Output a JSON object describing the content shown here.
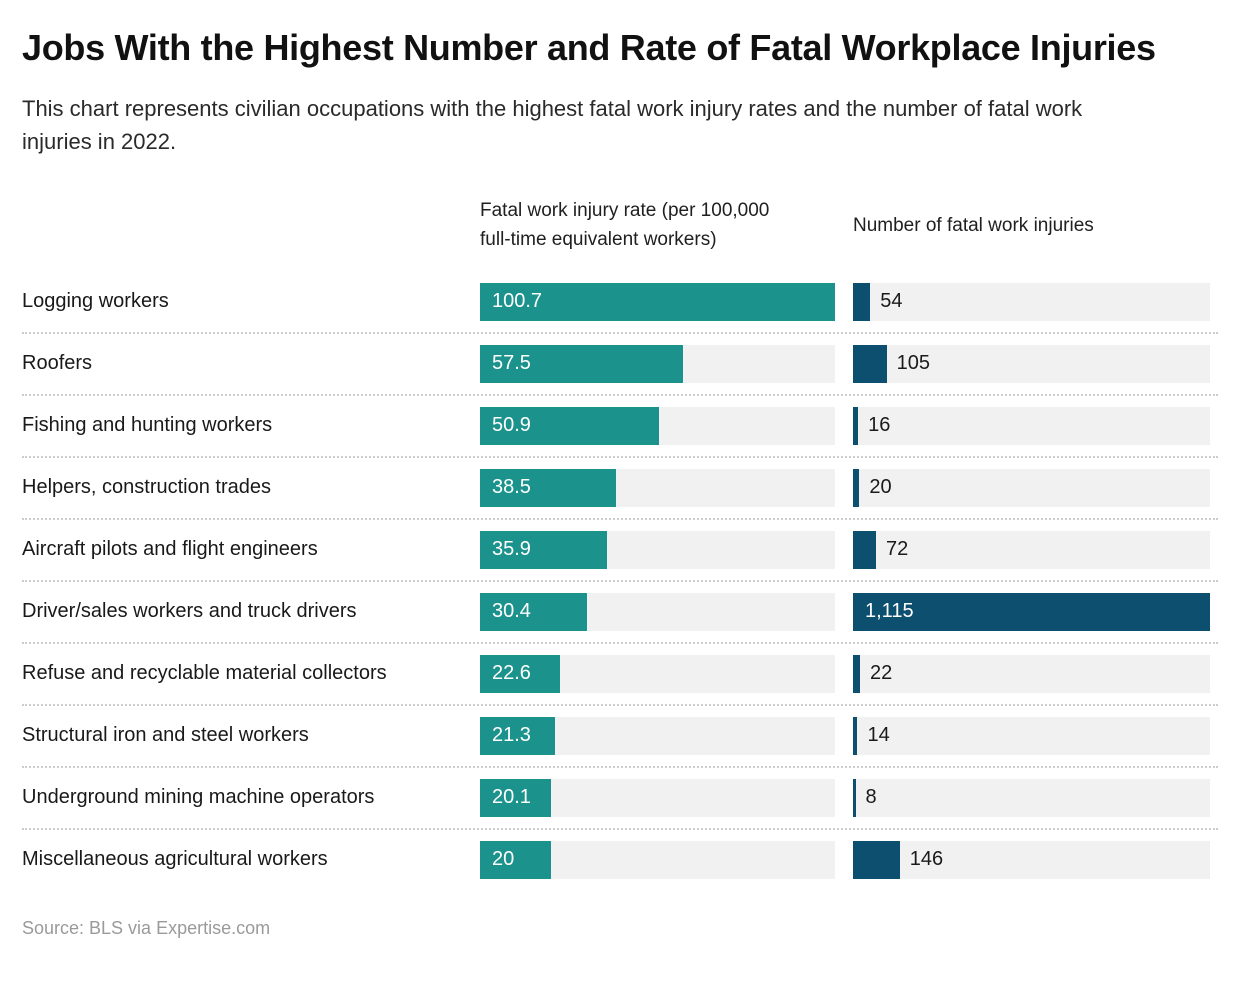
{
  "header": {
    "title": "Jobs With the Highest Number and Rate of Fatal Workplace Injuries",
    "subtitle": "This chart represents civilian occupations with the highest fatal work injury rates and the number of fatal work injuries in 2022."
  },
  "columns": {
    "rate_header": "Fatal work injury rate (per 100,000 full-time equivalent workers)",
    "count_header": "Number of fatal work injuries"
  },
  "footer": {
    "source": "Source: BLS via Expertise.com"
  },
  "colors": {
    "rate_bar": "#1B928B",
    "count_bar": "#0C4F6E",
    "track": "#F1F1F1",
    "value_inside": "#FFFFFF",
    "value_outside": "#1A1A1A"
  },
  "chart_data": {
    "type": "bar",
    "orientation": "horizontal",
    "title": "Jobs With the Highest Number and Rate of Fatal Workplace Injuries",
    "subtitle": "This chart represents civilian occupations with the highest fatal work injury rates and the number of fatal work injuries in 2022.",
    "source": "Source: BLS via Expertise.com",
    "grid": false,
    "legend": "none",
    "categories": [
      "Logging workers",
      "Roofers",
      "Fishing and hunting workers",
      "Helpers, construction trades",
      "Aircraft pilots and flight engineers",
      "Driver/sales workers and truck drivers",
      "Refuse and recyclable material collectors",
      "Structural iron and steel workers",
      "Underground mining machine operators",
      "Miscellaneous agricultural workers"
    ],
    "series": [
      {
        "name": "Fatal work injury rate (per 100,000 full-time equivalent workers)",
        "values": [
          100.7,
          57.5,
          50.9,
          38.5,
          35.9,
          30.4,
          22.6,
          21.3,
          20.1,
          20
        ],
        "display": [
          "100.7",
          "57.5",
          "50.9",
          "38.5",
          "35.9",
          "30.4",
          "22.6",
          "21.3",
          "20.1",
          "20"
        ],
        "axis_max": 100.7,
        "color": "#1B928B",
        "value_label_position": "inside-left"
      },
      {
        "name": "Number of fatal work injuries",
        "values": [
          54,
          105,
          16,
          20,
          72,
          1115,
          22,
          14,
          8,
          146
        ],
        "display": [
          "54",
          "105",
          "16",
          "20",
          "72",
          "1,115",
          "22",
          "14",
          "8",
          "146"
        ],
        "axis_max": 1115,
        "color": "#0C4F6E",
        "value_label_position": "outside-right"
      }
    ]
  }
}
